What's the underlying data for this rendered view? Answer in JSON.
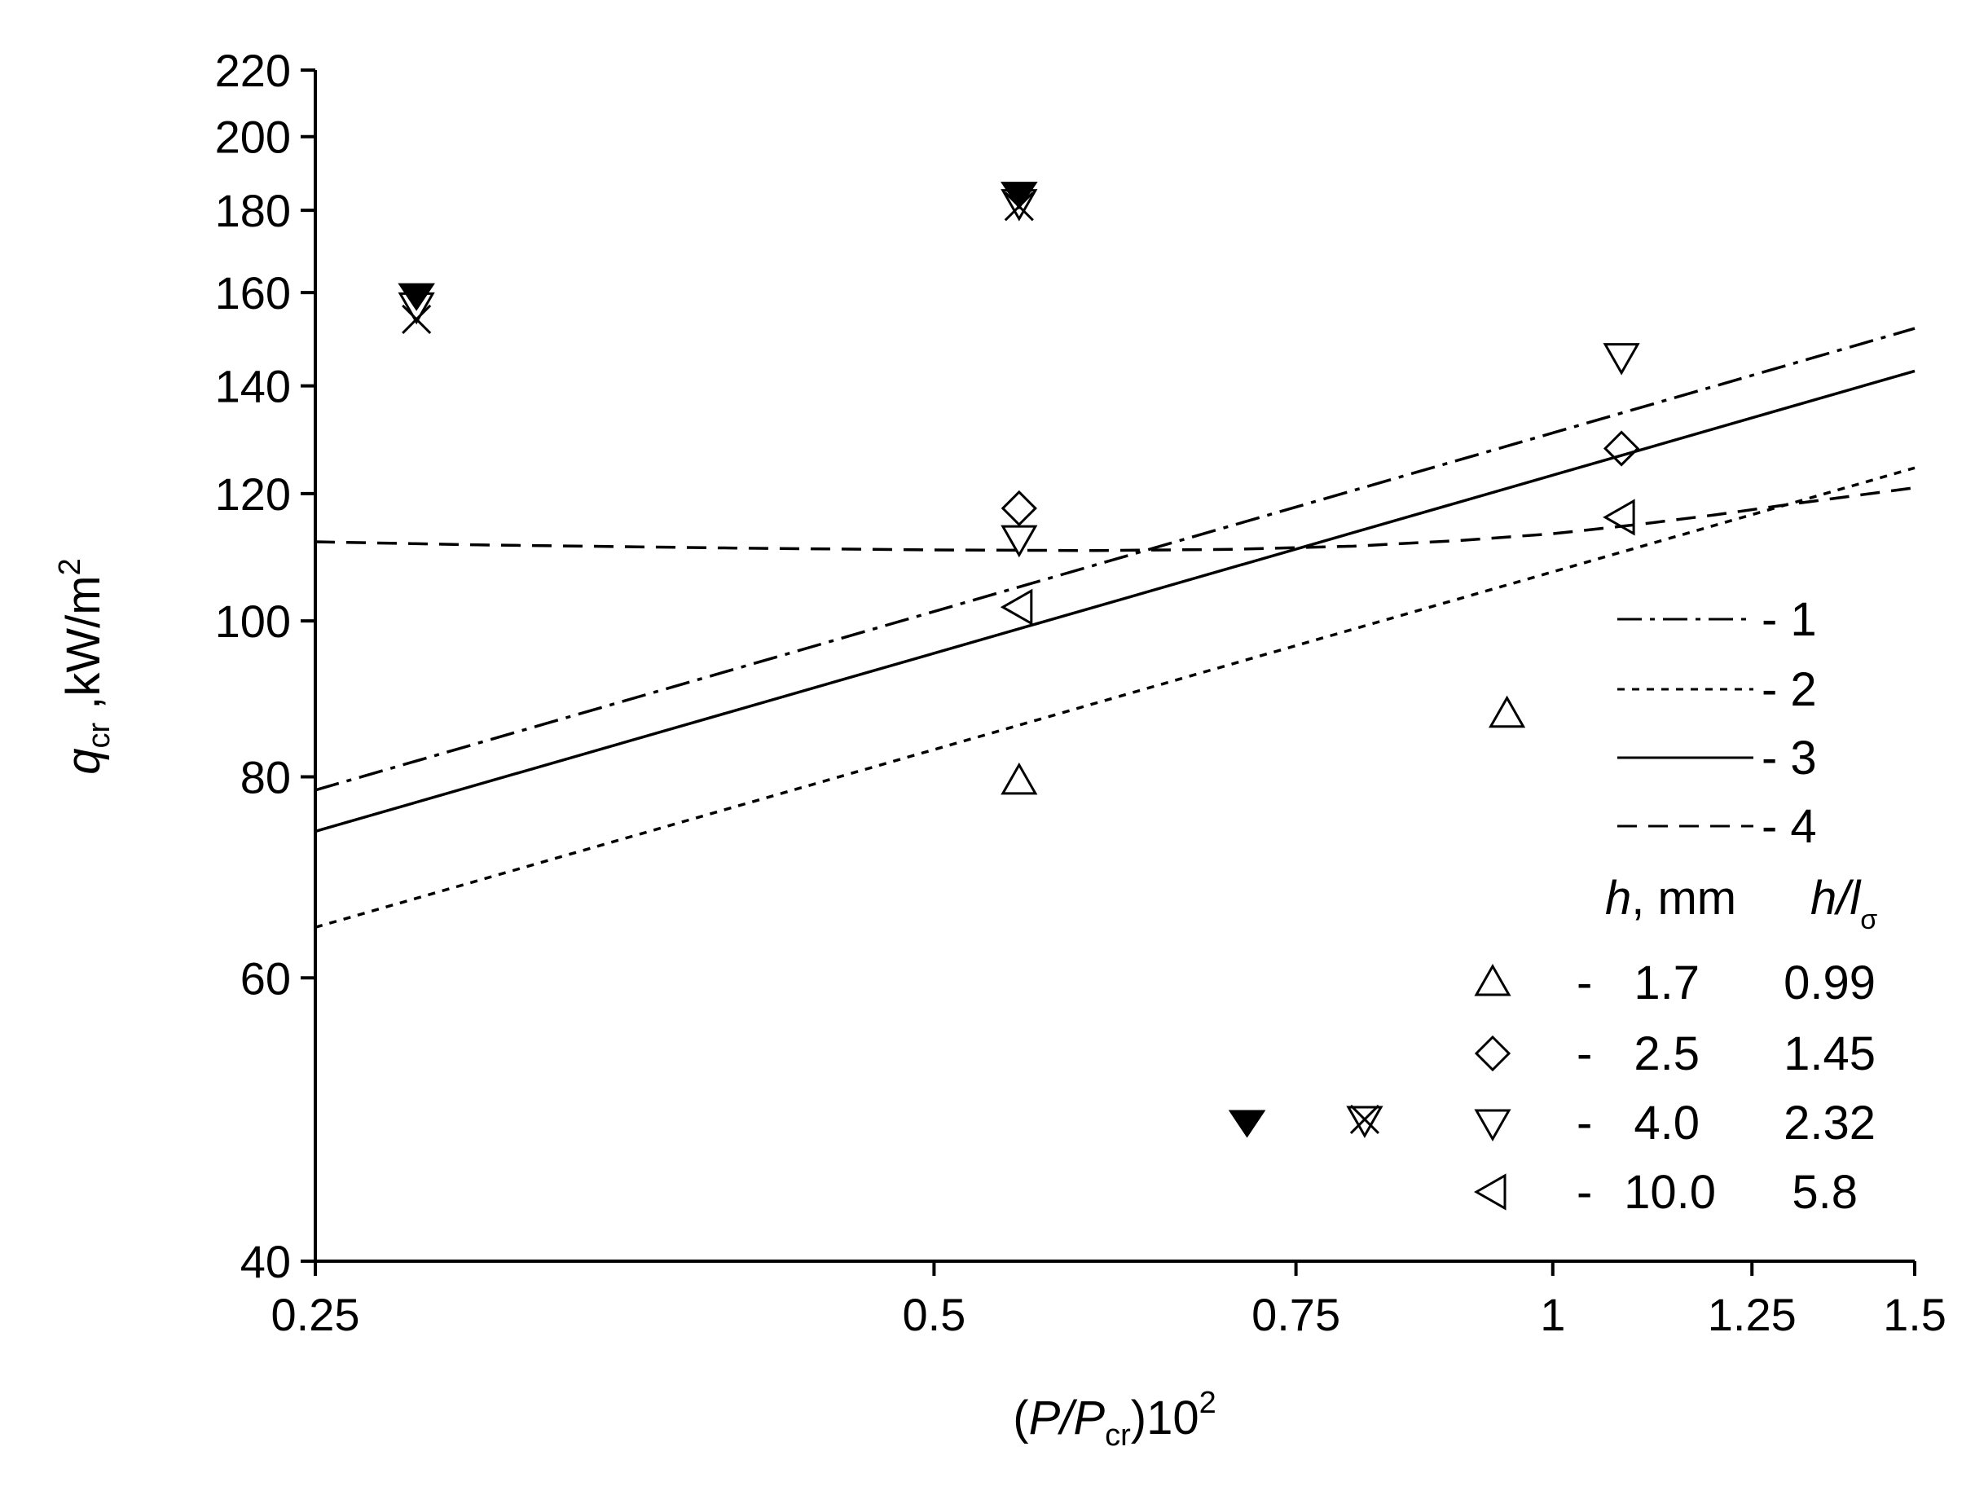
{
  "chart_data": {
    "type": "scatter",
    "x_scale": "log",
    "y_scale": "log",
    "xlim": [
      0.25,
      1.5
    ],
    "ylim": [
      40,
      220
    ],
    "x_ticks": [
      {
        "v": 0.25,
        "label": "0.25"
      },
      {
        "v": 0.5,
        "label": "0.5"
      },
      {
        "v": 0.75,
        "label": "0.75"
      },
      {
        "v": 1,
        "label": "1"
      },
      {
        "v": 1.25,
        "label": "1.25"
      },
      {
        "v": 1.5,
        "label": "1.5"
      }
    ],
    "y_ticks": [
      {
        "v": 40,
        "label": "40"
      },
      {
        "v": 60,
        "label": "60"
      },
      {
        "v": 80,
        "label": "80"
      },
      {
        "v": 100,
        "label": "100"
      },
      {
        "v": 120,
        "label": "120"
      },
      {
        "v": 140,
        "label": "140"
      },
      {
        "v": 160,
        "label": "160"
      },
      {
        "v": 180,
        "label": "180"
      },
      {
        "v": 200,
        "label": "200"
      },
      {
        "v": 220,
        "label": "220"
      }
    ],
    "xlabel": {
      "pre": "(",
      "P1": "P",
      "slash": "/",
      "P2": "P",
      "sub": "cr",
      "post": ")10",
      "sup": "2"
    },
    "ylabel": {
      "q": "q",
      "sub": "cr",
      "sep": " ,",
      "unit": "kW/m",
      "sup": "2"
    },
    "lines": [
      {
        "id": "1",
        "label": "- 1",
        "style": "dashdot",
        "x": [
          0.25,
          1.5
        ],
        "y": [
          78.5,
          152
        ]
      },
      {
        "id": "2",
        "label": "- 2",
        "style": "dotted",
        "x": [
          0.25,
          1.5
        ],
        "y": [
          64.5,
          124.5
        ]
      },
      {
        "id": "3",
        "label": "- 3",
        "style": "solid",
        "x": [
          0.25,
          1.5
        ],
        "y": [
          74,
          143
        ]
      },
      {
        "id": "4",
        "label": "- 4",
        "style": "dashed",
        "x": [
          0.25,
          0.3,
          0.4,
          0.5,
          0.6,
          0.7,
          0.8,
          0.9,
          1.0,
          1.1,
          1.2,
          1.3,
          1.4,
          1.5
        ],
        "y": [
          112,
          111.5,
          111,
          110.7,
          110.6,
          110.8,
          111.3,
          112.2,
          113.3,
          114.8,
          116.4,
          118.1,
          119.6,
          121
        ]
      }
    ],
    "series": [
      {
        "name": "triangle-up",
        "marker": "triangle-up",
        "h_mm": "1.7",
        "h_ratio": "0.99",
        "x": [
          0.55,
          0.95
        ],
        "y": [
          79.5,
          87.5
        ]
      },
      {
        "name": "diamond",
        "marker": "diamond",
        "h_mm": "2.5",
        "h_ratio": "1.45",
        "x": [
          0.55,
          1.08
        ],
        "y": [
          117.5,
          128
        ]
      },
      {
        "name": "triangle-down",
        "marker": "triangle-down",
        "h_mm": "4.0",
        "h_ratio": "2.32",
        "x": [
          0.55,
          1.08
        ],
        "y": [
          112.5,
          146
        ]
      },
      {
        "name": "triangle-left",
        "marker": "triangle-left",
        "h_mm": "10.0",
        "h_ratio": "5.8",
        "x": [
          0.55,
          1.08
        ],
        "y": [
          102,
          116
        ]
      }
    ],
    "overlay_markers": [
      {
        "name": "filled-triangle-down",
        "marker": "filled-triangle-down",
        "x": [
          0.28,
          0.55,
          0.71
        ],
        "y": [
          160,
          185,
          49
        ]
      },
      {
        "name": "open-triangle-down",
        "marker": "triangle-down",
        "x": [
          0.28,
          0.55,
          0.81
        ],
        "y": [
          157,
          182,
          49
        ]
      },
      {
        "name": "cross",
        "marker": "x",
        "x": [
          0.28,
          0.55,
          0.81
        ],
        "y": [
          154,
          181,
          49
        ]
      }
    ],
    "legend": {
      "position": "right",
      "header_h": "h",
      "header_h_rest": ", mm",
      "header_ratio_h": "h",
      "header_ratio_slash": "/",
      "header_ratio_l": "l",
      "header_ratio_sub": "σ",
      "dash": "-"
    }
  }
}
